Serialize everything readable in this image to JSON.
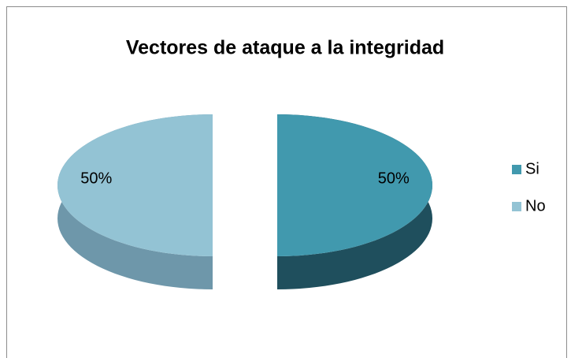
{
  "chart_data": {
    "type": "pie",
    "title": "Vectores de ataque a la integridad",
    "categories": [
      "Si",
      "No"
    ],
    "values": [
      50,
      50
    ],
    "value_labels": [
      "50%",
      "50%"
    ],
    "colors": [
      "#4199ae",
      "#93c3d4"
    ],
    "side_colors": [
      "#1f4f5d",
      "#6e97aa"
    ],
    "legend": "right"
  }
}
